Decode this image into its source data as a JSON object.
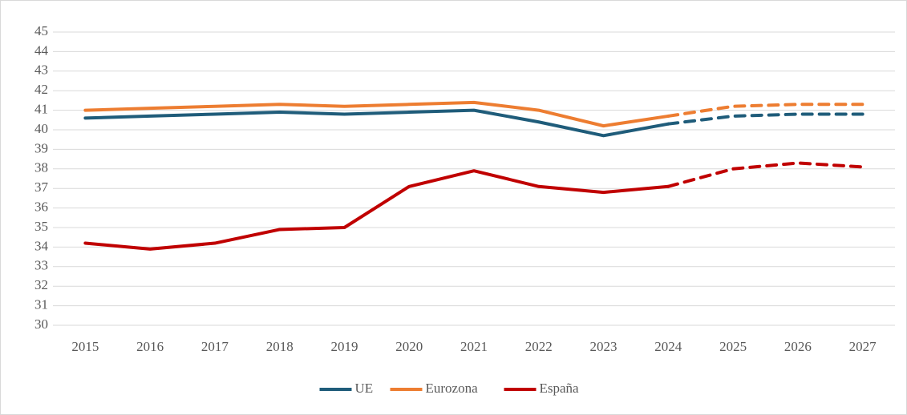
{
  "chart_data": {
    "type": "line",
    "categories": [
      "2015",
      "2016",
      "2017",
      "2018",
      "2019",
      "2020",
      "2021",
      "2022",
      "2023",
      "2024",
      "2025",
      "2026",
      "2027"
    ],
    "series": [
      {
        "name": "UE",
        "color": "#1f5c7a",
        "values": [
          40.6,
          40.7,
          40.8,
          40.9,
          40.8,
          40.9,
          41.0,
          40.4,
          39.7,
          40.3,
          40.7,
          40.8,
          40.8
        ]
      },
      {
        "name": "Eurozona",
        "color": "#ed7d31",
        "values": [
          41.0,
          41.1,
          41.2,
          41.3,
          41.2,
          41.3,
          41.4,
          41.0,
          40.2,
          40.7,
          41.2,
          41.3,
          41.3
        ]
      },
      {
        "name": "España",
        "color": "#c00000",
        "values": [
          34.2,
          33.9,
          34.2,
          34.9,
          35.0,
          37.1,
          37.9,
          37.1,
          36.8,
          37.1,
          38.0,
          38.3,
          38.1
        ]
      }
    ],
    "dashed_from": "2024",
    "ylim": [
      30,
      45
    ],
    "yticks": [
      30,
      31,
      32,
      33,
      34,
      35,
      36,
      37,
      38,
      39,
      40,
      41,
      42,
      43,
      44,
      45
    ],
    "grid": true,
    "legend": "bottom"
  }
}
